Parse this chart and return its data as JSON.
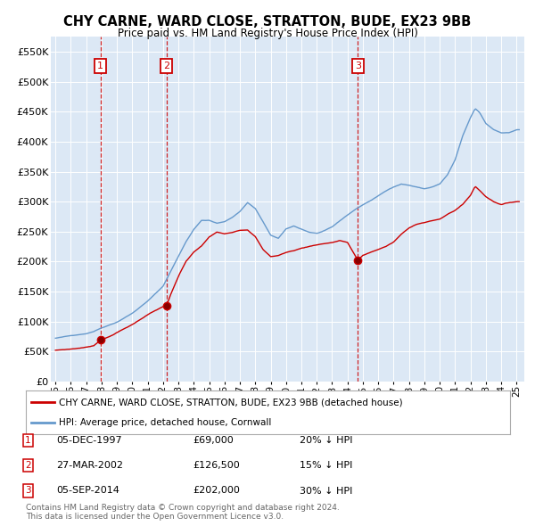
{
  "title": "CHY CARNE, WARD CLOSE, STRATTON, BUDE, EX23 9BB",
  "subtitle": "Price paid vs. HM Land Registry's House Price Index (HPI)",
  "ylim": [
    0,
    575000
  ],
  "yticks": [
    0,
    50000,
    100000,
    150000,
    200000,
    250000,
    300000,
    350000,
    400000,
    450000,
    500000,
    550000
  ],
  "ytick_labels": [
    "£0",
    "£50K",
    "£100K",
    "£150K",
    "£200K",
    "£250K",
    "£300K",
    "£350K",
    "£400K",
    "£450K",
    "£500K",
    "£550K"
  ],
  "background_color": "#ffffff",
  "plot_bg_color": "#dce8f5",
  "grid_color": "#ffffff",
  "legend_label_red": "CHY CARNE, WARD CLOSE, STRATTON, BUDE, EX23 9BB (detached house)",
  "legend_label_blue": "HPI: Average price, detached house, Cornwall",
  "red_color": "#cc0000",
  "blue_color": "#6699cc",
  "sale_year_floats": [
    1997.92,
    2002.23,
    2014.67
  ],
  "sale_prices": [
    69000,
    126500,
    202000
  ],
  "sale_labels": [
    "1",
    "2",
    "3"
  ],
  "sale_label_prices": [
    "£69,000",
    "£126,500",
    "£202,000"
  ],
  "sale_hpi_info": [
    "20% ↓ HPI",
    "15% ↓ HPI",
    "30% ↓ HPI"
  ],
  "sale_date_labels": [
    "05-DEC-1997",
    "27-MAR-2002",
    "05-SEP-2014"
  ],
  "footer_line1": "Contains HM Land Registry data © Crown copyright and database right 2024.",
  "footer_line2": "This data is licensed under the Open Government Licence v3.0.",
  "xlim_start": 1994.7,
  "xlim_end": 2025.5,
  "xtick_years": [
    1995,
    1996,
    1997,
    1998,
    1999,
    2000,
    2001,
    2002,
    2003,
    2004,
    2005,
    2006,
    2007,
    2008,
    2009,
    2010,
    2011,
    2012,
    2013,
    2014,
    2015,
    2016,
    2017,
    2018,
    2019,
    2020,
    2021,
    2022,
    2023,
    2024,
    2025
  ],
  "xtick_labels": [
    "95",
    "96",
    "97",
    "98",
    "99",
    "00",
    "01",
    "02",
    "03",
    "04",
    "05",
    "06",
    "07",
    "08",
    "09",
    "10",
    "11",
    "12",
    "13",
    "14",
    "15",
    "16",
    "17",
    "18",
    "19",
    "20",
    "21",
    "22",
    "23",
    "24",
    "25"
  ]
}
